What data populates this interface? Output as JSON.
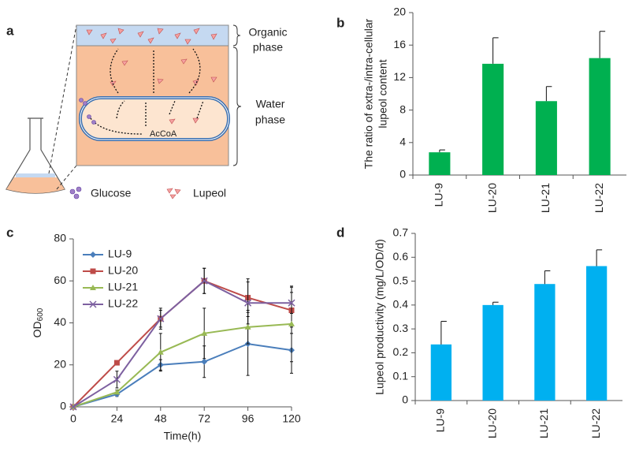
{
  "diagram": {
    "panel_label": "a",
    "organic": [
      "Organic",
      "phase"
    ],
    "water": [
      "Water",
      "phase"
    ],
    "accoa": "AcCoA",
    "glucose": "Glucose",
    "lupeol": "Lupeol"
  },
  "chart_data": [
    {
      "type": "bar",
      "panel_label": "b",
      "ylabel": [
        "The ratio of extra-/intra-cellular",
        "lupeol content"
      ],
      "categories": [
        "LU-9",
        "LU-20",
        "LU-21",
        "LU-22"
      ],
      "values": [
        2.8,
        13.7,
        9.1,
        14.4
      ],
      "errors": [
        0.3,
        3.2,
        1.8,
        3.3
      ],
      "color": "#00b050",
      "ylim": [
        0,
        20
      ],
      "yticks": [
        0,
        4,
        8,
        12,
        16,
        20
      ]
    },
    {
      "type": "line",
      "panel_label": "c",
      "ylabel": "OD",
      "ylabel_subscript": "600",
      "xlabel": "Time(h)",
      "x": [
        0,
        24,
        48,
        72,
        96,
        120
      ],
      "xlim": [
        0,
        120
      ],
      "xticks": [
        0,
        24,
        48,
        72,
        96,
        120
      ],
      "ylim": [
        0,
        80
      ],
      "yticks": [
        0,
        20,
        40,
        60,
        80
      ],
      "legend": "top-left",
      "series": [
        {
          "name": "LU-9",
          "color": "#4a7ebb",
          "marker": "diamond",
          "values": [
            0,
            6,
            20,
            21.5,
            30,
            27
          ],
          "errors": [
            0,
            1,
            2.5,
            7.5,
            15,
            11
          ]
        },
        {
          "name": "LU-20",
          "color": "#be4b48",
          "marker": "square",
          "values": [
            0,
            21,
            42,
            60,
            52,
            46
          ],
          "errors": [
            0,
            0,
            5,
            6,
            9,
            11
          ]
        },
        {
          "name": "LU-21",
          "color": "#98b954",
          "marker": "triangle",
          "values": [
            0,
            7,
            26,
            35,
            38,
            39.5
          ],
          "errors": [
            0,
            1,
            9,
            12,
            8,
            18
          ]
        },
        {
          "name": "LU-22",
          "color": "#7d60a0",
          "marker": "cross",
          "values": [
            0,
            13,
            42,
            60,
            49.5,
            49.5
          ],
          "errors": [
            0,
            4,
            4,
            6,
            10,
            5
          ]
        }
      ]
    },
    {
      "type": "bar",
      "panel_label": "d",
      "ylabel": [
        "Lupeol productivity (mg/L/OD/d)"
      ],
      "categories": [
        "LU-9",
        "LU-20",
        "LU-21",
        "LU-22"
      ],
      "values": [
        0.235,
        0.4,
        0.488,
        0.563
      ],
      "errors": [
        0.097,
        0.012,
        0.055,
        0.068
      ],
      "color": "#00b0f0",
      "ylim": [
        0,
        0.7
      ],
      "yticks": [
        0,
        0.1,
        0.2,
        0.3,
        0.4,
        0.5,
        0.6,
        0.7
      ]
    }
  ]
}
